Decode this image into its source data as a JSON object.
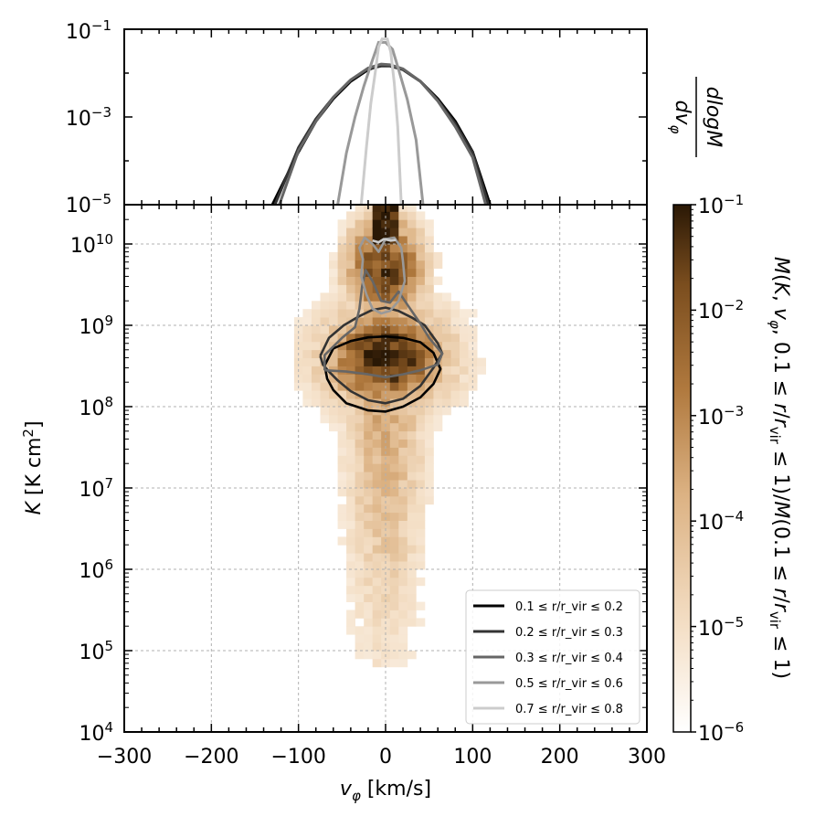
{
  "chart_data": [
    {
      "type": "line",
      "panel": "top",
      "yscale": "log",
      "xlim": [
        -300,
        300
      ],
      "ylim": [
        1e-05,
        0.1
      ],
      "ylabel_num": "dlogM",
      "ylabel_den": "dv_φ",
      "ytick_labels": [
        "10^-5",
        "10^-3",
        "10^-1"
      ],
      "series": [
        {
          "color": "#000000",
          "points": [
            [
              -130,
              1e-05
            ],
            [
              -100,
              0.00016
            ],
            [
              -80,
              0.0008
            ],
            [
              -60,
              0.0026
            ],
            [
              -40,
              0.0065
            ],
            [
              -20,
              0.012
            ],
            [
              -5,
              0.015
            ],
            [
              5,
              0.015
            ],
            [
              20,
              0.012
            ],
            [
              40,
              0.0065
            ],
            [
              60,
              0.0026
            ],
            [
              80,
              0.0008
            ],
            [
              100,
              0.00016
            ],
            [
              120,
              1e-05
            ]
          ]
        },
        {
          "color": "#333333",
          "points": [
            [
              -127,
              1e-05
            ],
            [
              -100,
              0.0002
            ],
            [
              -80,
              0.0009
            ],
            [
              -60,
              0.0028
            ],
            [
              -40,
              0.007
            ],
            [
              -20,
              0.0125
            ],
            [
              -5,
              0.0145
            ],
            [
              5,
              0.0145
            ],
            [
              20,
              0.012
            ],
            [
              40,
              0.0065
            ],
            [
              60,
              0.0024
            ],
            [
              80,
              0.0007
            ],
            [
              100,
              0.00015
            ],
            [
              118,
              1e-05
            ]
          ]
        },
        {
          "color": "#666666",
          "points": [
            [
              -122,
              1e-05
            ],
            [
              -100,
              0.00017
            ],
            [
              -80,
              0.0008
            ],
            [
              -60,
              0.0028
            ],
            [
              -40,
              0.007
            ],
            [
              -20,
              0.013
            ],
            [
              -5,
              0.016
            ],
            [
              5,
              0.0155
            ],
            [
              20,
              0.0125
            ],
            [
              40,
              0.0065
            ],
            [
              60,
              0.0023
            ],
            [
              80,
              0.0006
            ],
            [
              100,
              0.00012
            ],
            [
              115,
              1e-05
            ]
          ]
        },
        {
          "color": "#999999",
          "points": [
            [
              -55,
              1e-05
            ],
            [
              -45,
              0.00015
            ],
            [
              -35,
              0.001
            ],
            [
              -25,
              0.005
            ],
            [
              -15,
              0.02
            ],
            [
              -8,
              0.05
            ],
            [
              0,
              0.05
            ],
            [
              8,
              0.035
            ],
            [
              15,
              0.012
            ],
            [
              25,
              0.0025
            ],
            [
              35,
              0.0003
            ],
            [
              43,
              1e-05
            ]
          ]
        },
        {
          "color": "#cccccc",
          "points": [
            [
              -28,
              1e-05
            ],
            [
              -22,
              0.0002
            ],
            [
              -17,
              0.002
            ],
            [
              -12,
              0.01
            ],
            [
              -8,
              0.04
            ],
            [
              -4,
              0.06
            ],
            [
              2,
              0.06
            ],
            [
              6,
              0.03
            ],
            [
              10,
              0.006
            ],
            [
              14,
              0.0006
            ],
            [
              18,
              1e-05
            ]
          ]
        }
      ]
    },
    {
      "type": "heatmap",
      "panel": "main",
      "yscale": "log",
      "xlim": [
        -300,
        300
      ],
      "ylim": [
        10000.0,
        40000000000.0
      ],
      "xlabel": "v_φ [km/s]",
      "ylabel": "K [K cm²]",
      "xtick_labels": [
        "−300",
        "−200",
        "−100",
        "0",
        "100",
        "200",
        "300"
      ],
      "ytick_labels": [
        "10^4",
        "10^5",
        "10^6",
        "10^7",
        "10^8",
        "10^9",
        "10^10"
      ],
      "grid": true,
      "colormap": [
        "#ffffff",
        "#f4dfc6",
        "#dcb283",
        "#b0793e",
        "#7a4d1e",
        "#2a1805"
      ],
      "colorbar": {
        "scale": "log",
        "range": [
          1e-06,
          0.1
        ],
        "tick_labels": [
          "10^-6",
          "10^-5",
          "10^-4",
          "10^-3",
          "10^-2",
          "10^-1"
        ],
        "label": "M(K, v_φ, 0.1 ≤ r/r_vir ≤ 1)/M(0.1 ≤ r/r_vir ≤ 1)"
      },
      "legend_position": "lower right",
      "series": [
        {
          "name": "0.1 ≤ r/r_vir ≤ 0.2",
          "color": "#000000",
          "contour": [
            [
              -70,
              320000000.0
            ],
            [
              -60,
              520000000.0
            ],
            [
              -40,
              640000000.0
            ],
            [
              -20,
              710000000.0
            ],
            [
              0,
              730000000.0
            ],
            [
              20,
              700000000.0
            ],
            [
              40,
              620000000.0
            ],
            [
              55,
              460000000.0
            ],
            [
              63,
              290000000.0
            ],
            [
              55,
              190000000.0
            ],
            [
              40,
              130000000.0
            ],
            [
              20,
              100000000.0
            ],
            [
              0,
              87000000.0
            ],
            [
              -20,
              90000000.0
            ],
            [
              -45,
              110000000.0
            ],
            [
              -60,
              160000000.0
            ],
            [
              -67,
              220000000.0
            ],
            [
              -70,
              320000000.0
            ]
          ]
        },
        {
          "name": "0.2 ≤ r/r_vir ≤ 0.3",
          "color": "#333333",
          "contour": [
            [
              -75,
              420000000.0
            ],
            [
              -65,
              700000000.0
            ],
            [
              -48,
              1000000000.0
            ],
            [
              -30,
              1300000000.0
            ],
            [
              -15,
              1550000000.0
            ],
            [
              0,
              1650000000.0
            ],
            [
              15,
              1500000000.0
            ],
            [
              30,
              1250000000.0
            ],
            [
              45,
              1000000000.0
            ],
            [
              60,
              600000000.0
            ],
            [
              65,
              450000000.0
            ],
            [
              55,
              300000000.0
            ],
            [
              40,
              180000000.0
            ],
            [
              20,
              125000000.0
            ],
            [
              0,
              110000000.0
            ],
            [
              -20,
              120000000.0
            ],
            [
              -40,
              155000000.0
            ],
            [
              -55,
              210000000.0
            ],
            [
              -65,
              270000000.0
            ],
            [
              -72,
              330000000.0
            ],
            [
              -75,
              420000000.0
            ]
          ]
        },
        {
          "name": "0.3 ≤ r/r_vir ≤ 0.4",
          "color": "#666666",
          "contour": [
            [
              -70,
              280000000.0
            ],
            [
              -70,
              430000000.0
            ],
            [
              -50,
              700000000.0
            ],
            [
              -35,
              950000000.0
            ],
            [
              -30,
              1600000000.0
            ],
            [
              -27,
              3000000000.0
            ],
            [
              -23,
              4800000000.0
            ],
            [
              -15,
              3500000000.0
            ],
            [
              -5,
              2000000000.0
            ],
            [
              5,
              1900000000.0
            ],
            [
              15,
              2600000000.0
            ],
            [
              25,
              1800000000.0
            ],
            [
              40,
              1050000000.0
            ],
            [
              50,
              700000000.0
            ],
            [
              65,
              450000000.0
            ],
            [
              60,
              330000000.0
            ],
            [
              40,
              280000000.0
            ],
            [
              20,
              250000000.0
            ],
            [
              0,
              230000000.0
            ],
            [
              -20,
              250000000.0
            ],
            [
              -45,
              270000000.0
            ],
            [
              -70,
              280000000.0
            ]
          ]
        },
        {
          "name": "0.5 ≤ r/r_vir ≤ 0.6",
          "color": "#999999",
          "contour": [
            [
              -28,
              4000000000.0
            ],
            [
              -26,
              6500000000.0
            ],
            [
              -30,
              9000000000.0
            ],
            [
              -24,
              12000000000.0
            ],
            [
              -15,
              10000000000.0
            ],
            [
              -8,
              8000000000.0
            ],
            [
              0,
              11500000000.0
            ],
            [
              10,
              12000000000.0
            ],
            [
              18,
              9000000000.0
            ],
            [
              20,
              6000000000.0
            ],
            [
              22,
              3500000000.0
            ],
            [
              15,
              2000000000.0
            ],
            [
              5,
              1500000000.0
            ],
            [
              -5,
              1400000000.0
            ],
            [
              -15,
              1600000000.0
            ],
            [
              -22,
              2400000000.0
            ],
            [
              -28,
              4000000000.0
            ]
          ]
        },
        {
          "name": "0.7 ≤ r/r_vir ≤ 0.8",
          "color": "#cccccc",
          "contour": [
            [
              -15,
              11000000000.0
            ],
            [
              -8,
              10500000000.0
            ],
            [
              -2,
              11500000000.0
            ],
            [
              6,
              11000000000.0
            ],
            [
              12,
              11200000000.0
            ]
          ]
        }
      ]
    }
  ]
}
